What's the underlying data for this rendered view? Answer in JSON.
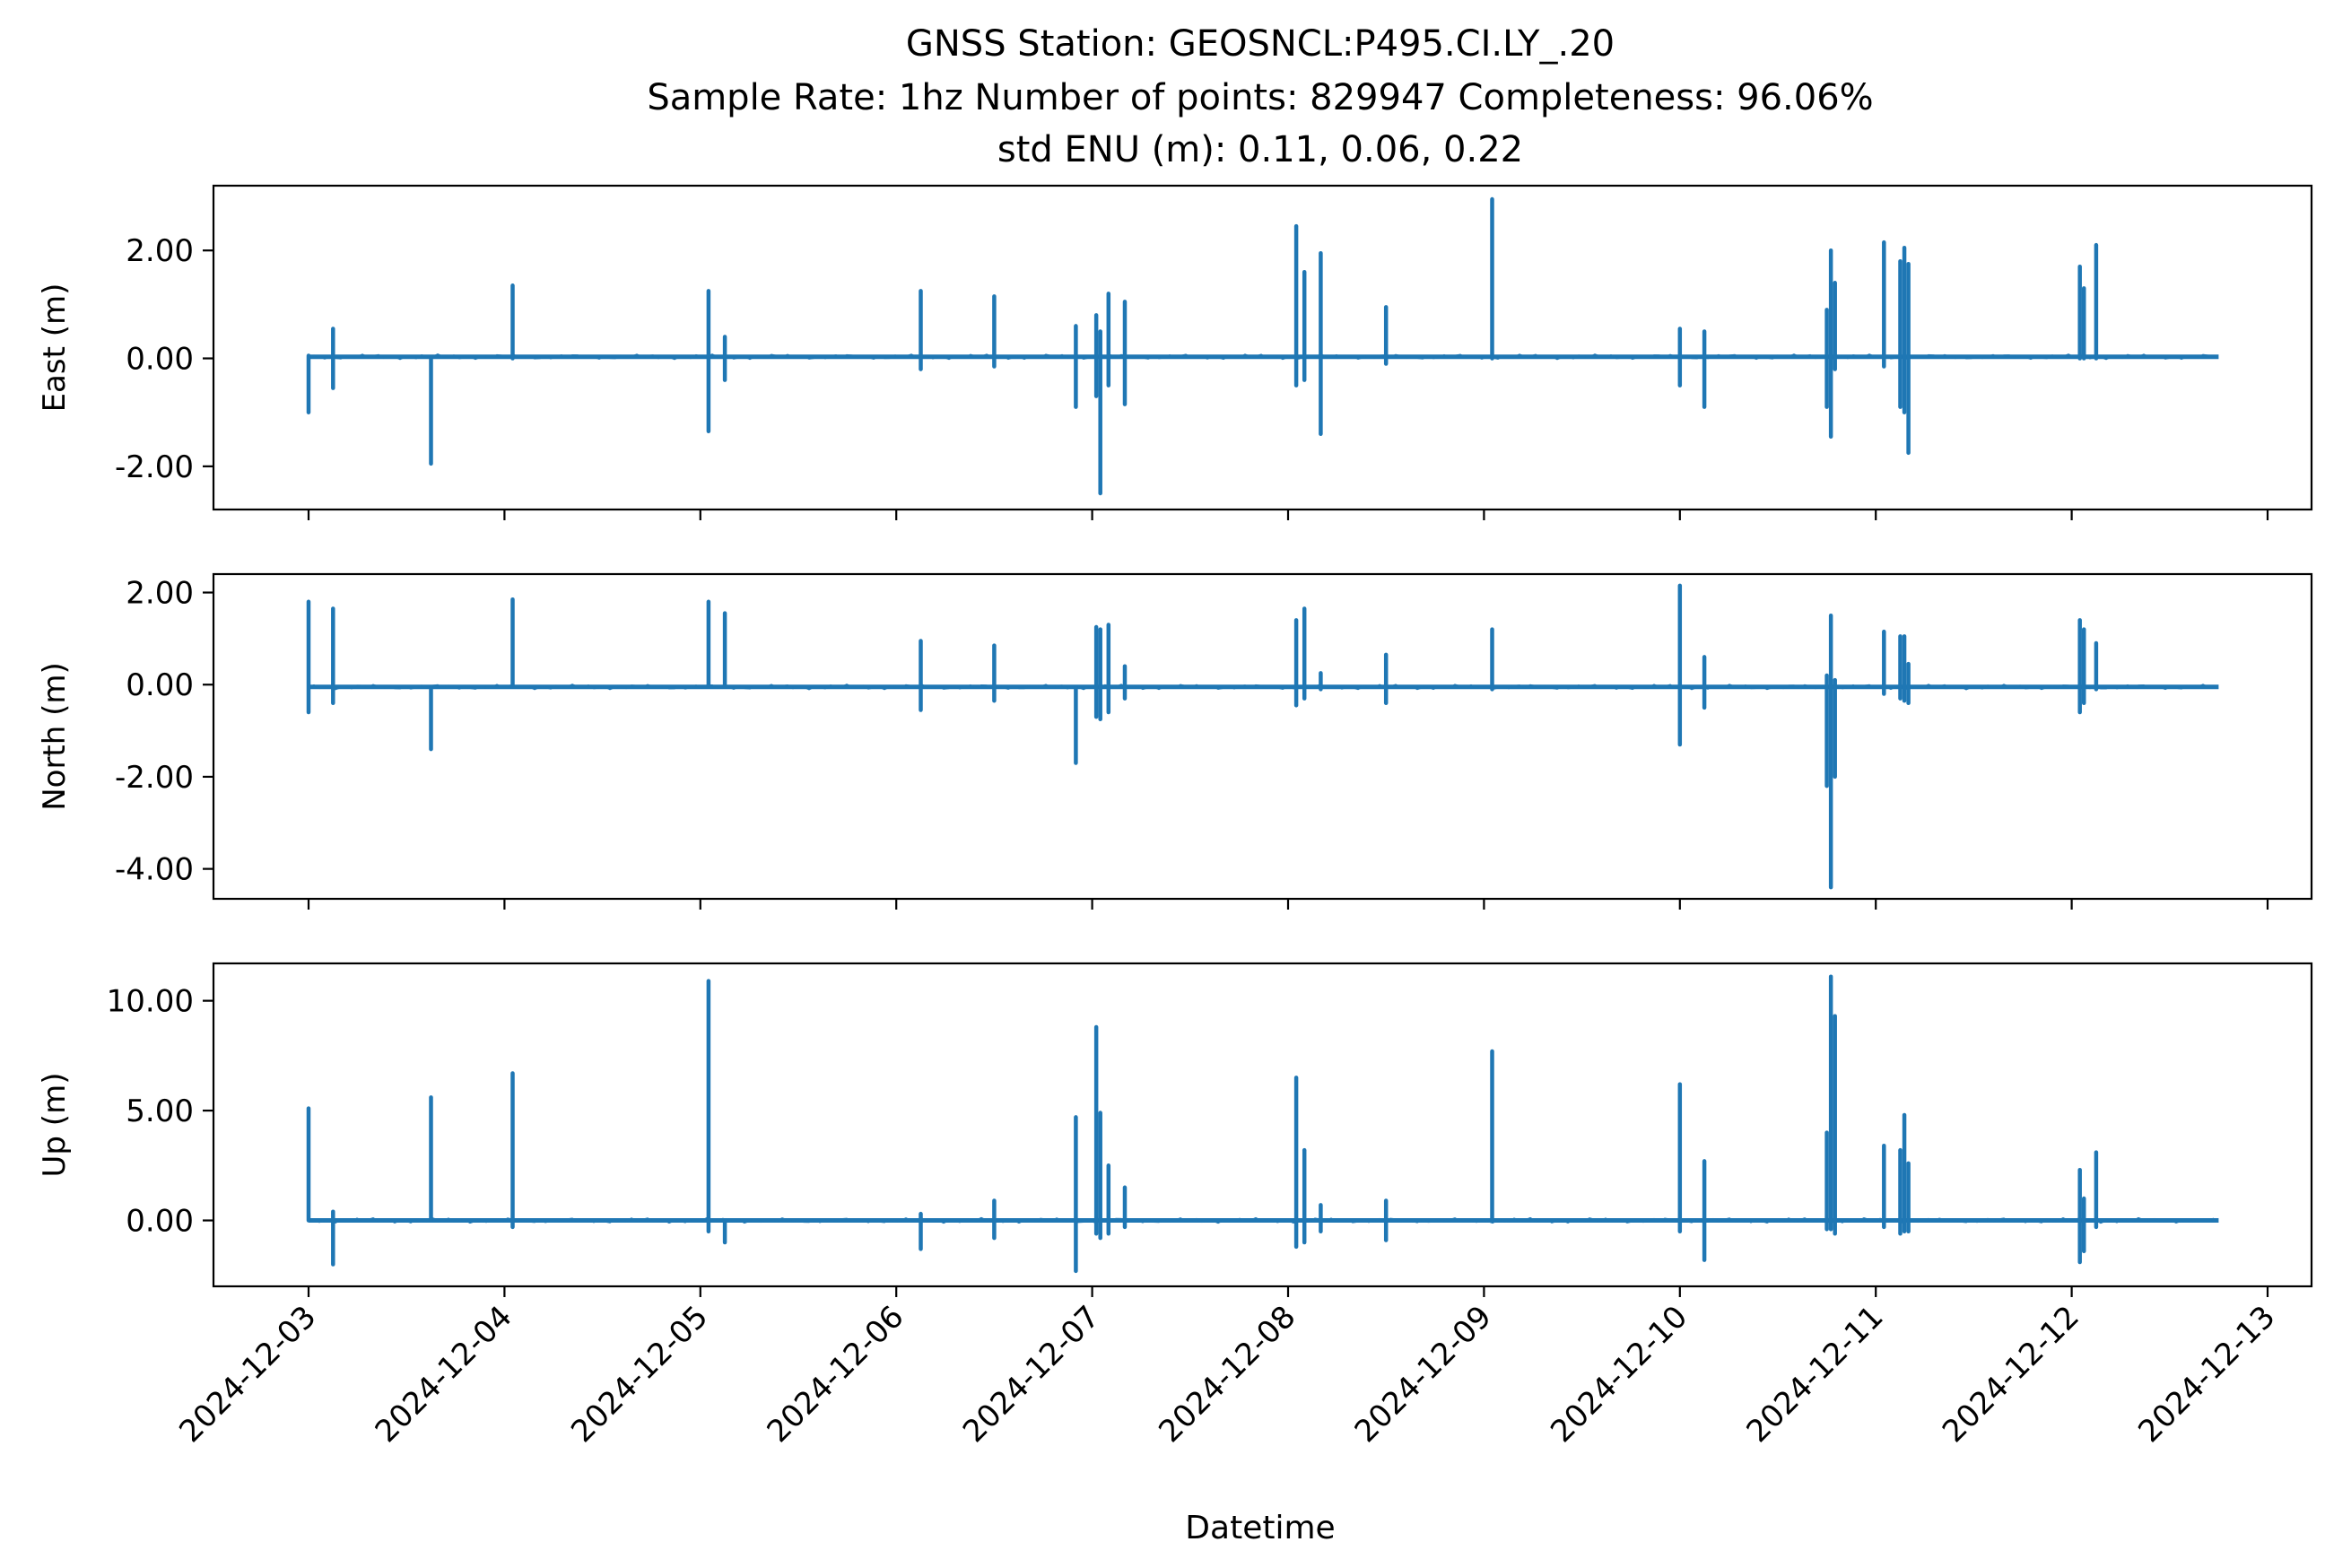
{
  "figure": {
    "title_lines": [
      "GNSS Station: GEOSNCL:P495.CI.LY_.20",
      "Sample Rate: 1hz   Number of points: 829947    Completeness:  96.06%",
      "std ENU (m):  0.11, 0.06, 0.22"
    ],
    "xlabel": "Datetime",
    "line_color": "#1f77b4"
  },
  "chart_data": [
    {
      "type": "line",
      "title": "",
      "xlabel": "",
      "ylabel": "East (m)",
      "xlim": [
        "2024-12-02T12:00",
        "2024-12-13T00:00"
      ],
      "ylim": [
        -2.8,
        3.2
      ],
      "xticks": [],
      "yticks": [
        -2,
        0,
        2
      ],
      "ytick_labels": [
        "-2.00",
        "0.00",
        "2.00"
      ],
      "series": [
        {
          "baseline": 0.03,
          "x": [
            "2024-12-03T00:00",
            "2024-12-13T00:00"
          ],
          "spikes": [
            {
              "x": "2024-12-03T00:00",
              "hi": 0.05,
              "lo": -1.0
            },
            {
              "x": "2024-12-03T03:00",
              "hi": 0.55,
              "lo": -0.55
            },
            {
              "x": "2024-12-03T15:00",
              "hi": 0.03,
              "lo": -1.95
            },
            {
              "x": "2024-12-04T01:00",
              "hi": 1.35,
              "lo": 0.0
            },
            {
              "x": "2024-12-05T01:00",
              "hi": 1.25,
              "lo": -1.35
            },
            {
              "x": "2024-12-05T03:00",
              "hi": 0.4,
              "lo": -0.4
            },
            {
              "x": "2024-12-06T03:00",
              "hi": 1.25,
              "lo": -0.2
            },
            {
              "x": "2024-12-06T12:00",
              "hi": 1.15,
              "lo": -0.15
            },
            {
              "x": "2024-12-06T22:00",
              "hi": 0.6,
              "lo": -0.9
            },
            {
              "x": "2024-12-07T00:30",
              "hi": 0.8,
              "lo": -0.7
            },
            {
              "x": "2024-12-07T01:00",
              "hi": 0.5,
              "lo": -2.5
            },
            {
              "x": "2024-12-07T02:00",
              "hi": 1.2,
              "lo": -0.5
            },
            {
              "x": "2024-12-07T04:00",
              "hi": 1.05,
              "lo": -0.85
            },
            {
              "x": "2024-12-08T01:00",
              "hi": 2.45,
              "lo": -0.5
            },
            {
              "x": "2024-12-08T02:00",
              "hi": 1.6,
              "lo": -0.4
            },
            {
              "x": "2024-12-08T04:00",
              "hi": 1.95,
              "lo": -1.4
            },
            {
              "x": "2024-12-08T12:00",
              "hi": 0.95,
              "lo": -0.1
            },
            {
              "x": "2024-12-09T01:00",
              "hi": 2.95,
              "lo": 0.0
            },
            {
              "x": "2024-12-10T00:00",
              "hi": 0.55,
              "lo": -0.5
            },
            {
              "x": "2024-12-10T03:00",
              "hi": 0.5,
              "lo": -0.9
            },
            {
              "x": "2024-12-10T18:00",
              "hi": 0.9,
              "lo": -0.9
            },
            {
              "x": "2024-12-10T18:30",
              "hi": 2.0,
              "lo": -1.45
            },
            {
              "x": "2024-12-10T19:00",
              "hi": 1.4,
              "lo": -0.2
            },
            {
              "x": "2024-12-11T01:00",
              "hi": 2.15,
              "lo": -0.15
            },
            {
              "x": "2024-12-11T03:00",
              "hi": 1.8,
              "lo": -0.9
            },
            {
              "x": "2024-12-11T03:30",
              "hi": 2.05,
              "lo": -1.0
            },
            {
              "x": "2024-12-11T04:00",
              "hi": 1.75,
              "lo": -1.75
            },
            {
              "x": "2024-12-12T01:00",
              "hi": 1.7,
              "lo": 0.0
            },
            {
              "x": "2024-12-12T01:30",
              "hi": 1.3,
              "lo": 0.0
            },
            {
              "x": "2024-12-12T03:00",
              "hi": 2.1,
              "lo": 0.0
            }
          ]
        }
      ]
    },
    {
      "type": "line",
      "title": "",
      "xlabel": "",
      "ylabel": "North (m)",
      "xlim": [
        "2024-12-02T12:00",
        "2024-12-13T00:00"
      ],
      "ylim": [
        -4.65,
        2.4
      ],
      "xticks": [],
      "yticks": [
        -4,
        -2,
        0,
        2
      ],
      "ytick_labels": [
        "-4.00",
        "-2.00",
        "0.00",
        "2.00"
      ],
      "series": [
        {
          "baseline": -0.05,
          "spikes": [
            {
              "x": "2024-12-03T00:00",
              "hi": 1.8,
              "lo": -0.6
            },
            {
              "x": "2024-12-03T03:00",
              "hi": 1.65,
              "lo": -0.4
            },
            {
              "x": "2024-12-03T15:00",
              "hi": -0.05,
              "lo": -1.4
            },
            {
              "x": "2024-12-04T01:00",
              "hi": 1.85,
              "lo": 0.0
            },
            {
              "x": "2024-12-05T01:00",
              "hi": 1.8,
              "lo": 0.0
            },
            {
              "x": "2024-12-05T03:00",
              "hi": 1.55,
              "lo": 0.0
            },
            {
              "x": "2024-12-06T03:00",
              "hi": 0.95,
              "lo": -0.55
            },
            {
              "x": "2024-12-06T12:00",
              "hi": 0.85,
              "lo": -0.35
            },
            {
              "x": "2024-12-06T22:00",
              "hi": -0.05,
              "lo": -1.7
            },
            {
              "x": "2024-12-07T00:30",
              "hi": 1.25,
              "lo": -0.7
            },
            {
              "x": "2024-12-07T01:00",
              "hi": 1.2,
              "lo": -0.75
            },
            {
              "x": "2024-12-07T02:00",
              "hi": 1.3,
              "lo": -0.6
            },
            {
              "x": "2024-12-07T04:00",
              "hi": 0.4,
              "lo": -0.3
            },
            {
              "x": "2024-12-08T01:00",
              "hi": 1.4,
              "lo": -0.45
            },
            {
              "x": "2024-12-08T02:00",
              "hi": 1.65,
              "lo": -0.3
            },
            {
              "x": "2024-12-08T04:00",
              "hi": 0.25,
              "lo": -0.1
            },
            {
              "x": "2024-12-08T12:00",
              "hi": 0.65,
              "lo": -0.4
            },
            {
              "x": "2024-12-09T01:00",
              "hi": 1.2,
              "lo": -0.1
            },
            {
              "x": "2024-12-10T00:00",
              "hi": 2.15,
              "lo": -1.3
            },
            {
              "x": "2024-12-10T03:00",
              "hi": 0.6,
              "lo": -0.5
            },
            {
              "x": "2024-12-10T18:00",
              "hi": 0.2,
              "lo": -2.2
            },
            {
              "x": "2024-12-10T18:30",
              "hi": 1.5,
              "lo": -4.4
            },
            {
              "x": "2024-12-10T19:00",
              "hi": 0.1,
              "lo": -2.0
            },
            {
              "x": "2024-12-11T01:00",
              "hi": 1.15,
              "lo": -0.2
            },
            {
              "x": "2024-12-11T03:00",
              "hi": 1.05,
              "lo": -0.3
            },
            {
              "x": "2024-12-11T03:30",
              "hi": 1.05,
              "lo": -0.35
            },
            {
              "x": "2024-12-11T04:00",
              "hi": 0.45,
              "lo": -0.4
            },
            {
              "x": "2024-12-12T01:00",
              "hi": 1.4,
              "lo": -0.6
            },
            {
              "x": "2024-12-12T01:30",
              "hi": 1.2,
              "lo": -0.4
            },
            {
              "x": "2024-12-12T03:00",
              "hi": 0.9,
              "lo": -0.1
            }
          ]
        }
      ]
    },
    {
      "type": "line",
      "title": "",
      "xlabel": "Datetime",
      "ylabel": "Up (m)",
      "xlim": [
        "2024-12-02T12:00",
        "2024-12-13T00:00"
      ],
      "ylim": [
        -3.0,
        11.7
      ],
      "xticks": [
        "2024-12-03",
        "2024-12-04",
        "2024-12-05",
        "2024-12-06",
        "2024-12-07",
        "2024-12-08",
        "2024-12-09",
        "2024-12-10",
        "2024-12-11",
        "2024-12-12",
        "2024-12-13"
      ],
      "yticks": [
        0,
        5,
        10
      ],
      "ytick_labels": [
        "0.00",
        "5.00",
        "10.00"
      ],
      "series": [
        {
          "baseline": 0.0,
          "spikes": [
            {
              "x": "2024-12-03T00:00",
              "hi": 5.1,
              "lo": 0.0
            },
            {
              "x": "2024-12-03T03:00",
              "hi": 0.4,
              "lo": -2.0
            },
            {
              "x": "2024-12-03T15:00",
              "hi": 5.6,
              "lo": 0.0
            },
            {
              "x": "2024-12-04T01:00",
              "hi": 6.7,
              "lo": -0.3
            },
            {
              "x": "2024-12-05T01:00",
              "hi": 10.9,
              "lo": -0.5
            },
            {
              "x": "2024-12-05T03:00",
              "hi": 0.0,
              "lo": -1.0
            },
            {
              "x": "2024-12-06T03:00",
              "hi": 0.3,
              "lo": -1.3
            },
            {
              "x": "2024-12-06T12:00",
              "hi": 0.9,
              "lo": -0.8
            },
            {
              "x": "2024-12-06T22:00",
              "hi": 4.7,
              "lo": -2.3
            },
            {
              "x": "2024-12-07T00:30",
              "hi": 8.8,
              "lo": -0.6
            },
            {
              "x": "2024-12-07T01:00",
              "hi": 4.9,
              "lo": -0.8
            },
            {
              "x": "2024-12-07T02:00",
              "hi": 2.5,
              "lo": -0.6
            },
            {
              "x": "2024-12-07T04:00",
              "hi": 1.5,
              "lo": -0.3
            },
            {
              "x": "2024-12-08T01:00",
              "hi": 6.5,
              "lo": -1.2
            },
            {
              "x": "2024-12-08T02:00",
              "hi": 3.2,
              "lo": -1.0
            },
            {
              "x": "2024-12-08T04:00",
              "hi": 0.7,
              "lo": -0.5
            },
            {
              "x": "2024-12-08T12:00",
              "hi": 0.9,
              "lo": -0.9
            },
            {
              "x": "2024-12-09T01:00",
              "hi": 7.7,
              "lo": 0.0
            },
            {
              "x": "2024-12-10T00:00",
              "hi": 6.2,
              "lo": -0.5
            },
            {
              "x": "2024-12-10T03:00",
              "hi": 2.7,
              "lo": -1.8
            },
            {
              "x": "2024-12-10T18:00",
              "hi": 4.0,
              "lo": -0.4
            },
            {
              "x": "2024-12-10T18:30",
              "hi": 11.1,
              "lo": -0.4
            },
            {
              "x": "2024-12-10T19:00",
              "hi": 9.3,
              "lo": -0.6
            },
            {
              "x": "2024-12-11T01:00",
              "hi": 3.4,
              "lo": -0.3
            },
            {
              "x": "2024-12-11T03:00",
              "hi": 3.2,
              "lo": -0.6
            },
            {
              "x": "2024-12-11T03:30",
              "hi": 4.8,
              "lo": -0.5
            },
            {
              "x": "2024-12-11T04:00",
              "hi": 2.6,
              "lo": -0.5
            },
            {
              "x": "2024-12-12T01:00",
              "hi": 2.3,
              "lo": -1.9
            },
            {
              "x": "2024-12-12T01:30",
              "hi": 1.0,
              "lo": -1.4
            },
            {
              "x": "2024-12-12T03:00",
              "hi": 3.1,
              "lo": -0.3
            }
          ]
        }
      ]
    }
  ]
}
